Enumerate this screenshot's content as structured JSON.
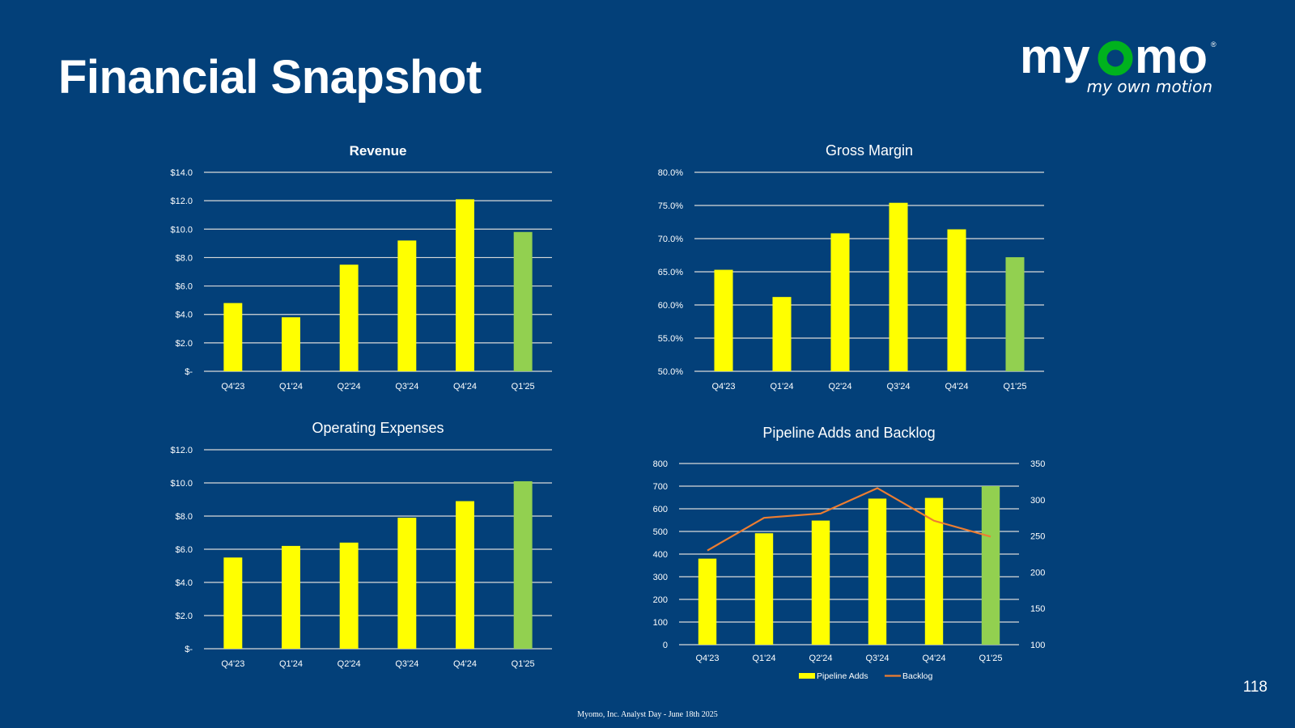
{
  "slide": {
    "title": "Financial Snapshot",
    "page_number": "118",
    "footer": "Myomo, Inc. Analyst Day - June 18th 2025",
    "background_color": "#034079"
  },
  "logo": {
    "wordmark_left": "my",
    "wordmark_o": "o",
    "wordmark_right": "mo",
    "registered": "®",
    "tagline": "my own motion",
    "accent_color": "#00b21e",
    "icon": "myomo-logo"
  },
  "colors": {
    "bar": "#ffff00",
    "bar_highlight": "#92d050",
    "line": "#ed7d31",
    "gridline": "#d9d9d9"
  },
  "chart_data": [
    {
      "id": "revenue",
      "type": "bar",
      "title": "Revenue",
      "categories": [
        "Q4'23",
        "Q1'24",
        "Q2'24",
        "Q3'24",
        "Q4'24",
        "Q1'25"
      ],
      "values": [
        4.8,
        3.8,
        7.5,
        9.2,
        12.1,
        9.8
      ],
      "highlight_index": 5,
      "ylim": [
        0,
        14
      ],
      "yticks": [
        0,
        2,
        4,
        6,
        8,
        10,
        12,
        14
      ],
      "ytick_labels": [
        "$-",
        "$2.0",
        "$4.0",
        "$6.0",
        "$8.0",
        "$10.0",
        "$12.0",
        "$14.0"
      ],
      "grid": true
    },
    {
      "id": "gross-margin",
      "type": "bar",
      "title": "Gross Margin",
      "categories": [
        "Q4'23",
        "Q1'24",
        "Q2'24",
        "Q3'24",
        "Q4'24",
        "Q1'25"
      ],
      "values": [
        65.3,
        61.2,
        70.8,
        75.4,
        71.4,
        67.2
      ],
      "highlight_index": 5,
      "ylim": [
        50,
        80
      ],
      "yticks": [
        50,
        55,
        60,
        65,
        70,
        75,
        80
      ],
      "ytick_labels": [
        "50.0%",
        "55.0%",
        "60.0%",
        "65.0%",
        "70.0%",
        "75.0%",
        "80.0%"
      ],
      "grid": true
    },
    {
      "id": "operating-expenses",
      "type": "bar",
      "title": "Operating Expenses",
      "categories": [
        "Q4'23",
        "Q1'24",
        "Q2'24",
        "Q3'24",
        "Q4'24",
        "Q1'25"
      ],
      "values": [
        5.5,
        6.2,
        6.4,
        7.9,
        8.9,
        10.1
      ],
      "highlight_index": 5,
      "ylim": [
        0,
        12
      ],
      "yticks": [
        0,
        2,
        4,
        6,
        8,
        10,
        12
      ],
      "ytick_labels": [
        "$-",
        "$2.0",
        "$4.0",
        "$6.0",
        "$8.0",
        "$10.0",
        "$12.0"
      ],
      "grid": true
    },
    {
      "id": "pipeline-backlog",
      "type": "bar",
      "title": "Pipeline Adds and Backlog",
      "categories": [
        "Q4'23",
        "Q1'24",
        "Q2'24",
        "Q3'24",
        "Q4'24",
        "Q1'25"
      ],
      "series": [
        {
          "name": "Pipeline Adds",
          "type": "bar",
          "axis": "left",
          "values": [
            380,
            492,
            548,
            645,
            648,
            700
          ]
        },
        {
          "name": "Backlog",
          "type": "line",
          "axis": "right",
          "values": [
            230,
            275,
            281,
            316,
            271,
            249
          ]
        }
      ],
      "highlight_index": 5,
      "ylim": [
        0,
        800
      ],
      "yticks": [
        0,
        100,
        200,
        300,
        400,
        500,
        600,
        700,
        800
      ],
      "ytick_labels": [
        "0",
        "100",
        "200",
        "300",
        "400",
        "500",
        "600",
        "700",
        "800"
      ],
      "y2lim": [
        100,
        350
      ],
      "y2ticks": [
        100,
        150,
        200,
        250,
        300,
        350
      ],
      "y2tick_labels": [
        "100",
        "150",
        "200",
        "250",
        "300",
        "350"
      ],
      "legend": "bottom",
      "grid": true
    }
  ]
}
